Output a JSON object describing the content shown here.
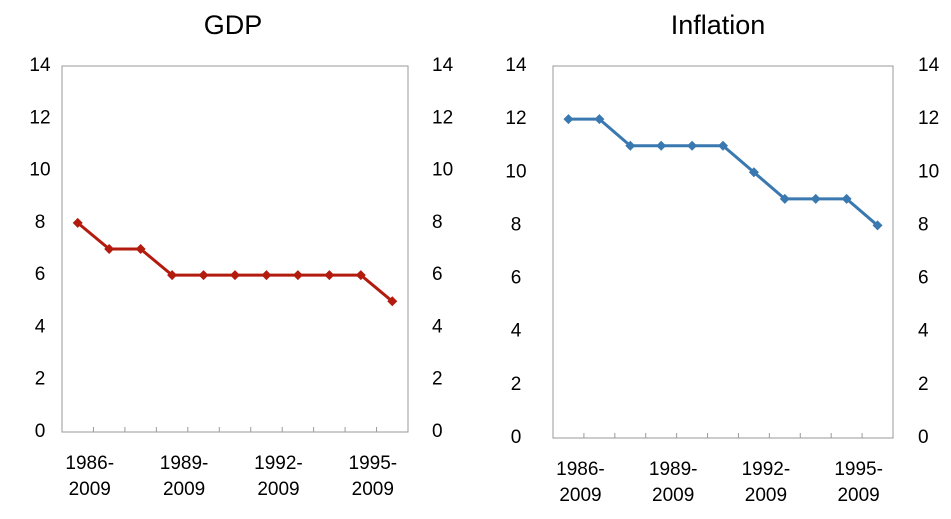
{
  "chart_data": [
    {
      "type": "line",
      "title": "GDP",
      "categories": [
        "1986-\n2009",
        null,
        null,
        "1989-\n2009",
        null,
        null,
        "1992-\n2009",
        null,
        null,
        "1995-\n2009",
        null
      ],
      "series": [
        {
          "name": "GDP",
          "color": "#b31b0f",
          "values": [
            8,
            7,
            7,
            6,
            6,
            6,
            6,
            6,
            6,
            6,
            5
          ]
        }
      ],
      "ylim": [
        0,
        14
      ],
      "yticks": [
        0,
        2,
        4,
        6,
        8,
        10,
        12,
        14
      ],
      "y2lim": [
        0,
        14
      ],
      "y2ticks": [
        0,
        2,
        4,
        6,
        8,
        10,
        12,
        14
      ]
    },
    {
      "type": "line",
      "title": "Inflation",
      "categories": [
        "1986-\n2009",
        null,
        null,
        "1989-\n2009",
        null,
        null,
        "1992-\n2009",
        null,
        null,
        "1995-\n2009",
        null
      ],
      "series": [
        {
          "name": "Inflation",
          "color": "#3a78b0",
          "values": [
            12,
            12,
            11,
            11,
            11,
            11,
            10,
            9,
            9,
            9,
            8
          ]
        }
      ],
      "ylim": [
        0,
        14
      ],
      "yticks": [
        0,
        2,
        4,
        6,
        8,
        10,
        12,
        14
      ],
      "y2lim": [
        0,
        14
      ],
      "y2ticks": [
        0,
        2,
        4,
        6,
        8,
        10,
        12,
        14
      ]
    }
  ]
}
